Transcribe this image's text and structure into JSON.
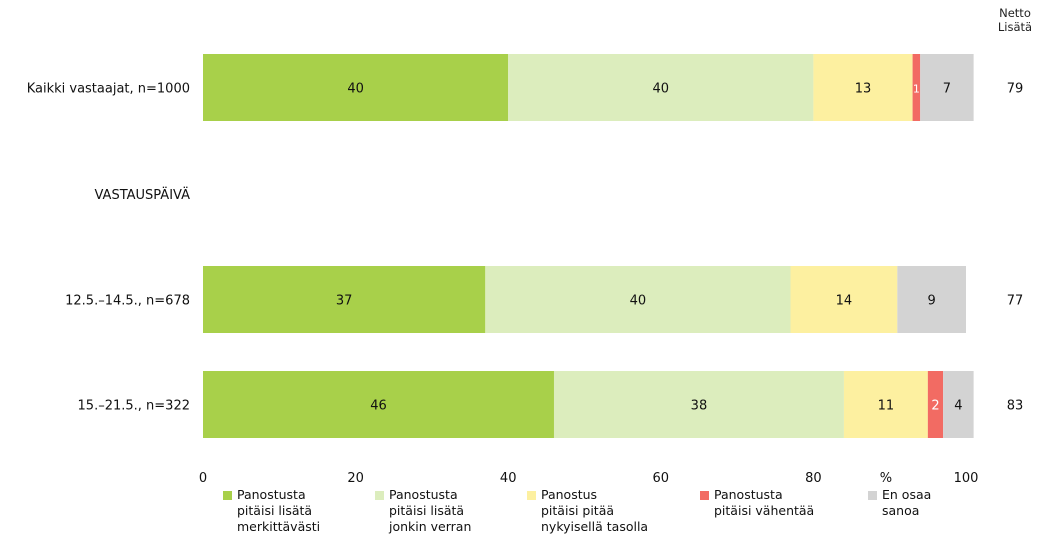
{
  "chart_data": {
    "type": "bar",
    "orientation": "horizontal",
    "stacked": true,
    "xlim": [
      0,
      100
    ],
    "x_ticks": [
      "0",
      "20",
      "40",
      "60",
      "80",
      "%",
      "100"
    ],
    "net_header": [
      "Netto",
      "Lisätä"
    ],
    "section_label": "VASTAUSPÄIVÄ",
    "series": [
      {
        "name": "Panostusta pitäisi lisätä merkittävästi",
        "color": "#a8d04a"
      },
      {
        "name": "Panostusta pitäisi lisätä jonkin verran",
        "color": "#dcedbd"
      },
      {
        "name": "Panostus pitäisi pitää nykyisellä tasolla",
        "color": "#fdf0a0"
      },
      {
        "name": "Panostusta pitäisi vähentää",
        "color": "#f26b63"
      },
      {
        "name": "En osaa sanoa",
        "color": "#d3d3d3"
      }
    ],
    "rows": [
      {
        "category": "Kaikki vastaajat, n=1000",
        "values": [
          40,
          40,
          13,
          1,
          7
        ],
        "labels": [
          "40",
          "40",
          "13",
          "1",
          "7"
        ],
        "net": "79"
      },
      {
        "category": "12.5.–14.5., n=678",
        "values": [
          37,
          40,
          14,
          0,
          9
        ],
        "labels": [
          "37",
          "40",
          "14",
          "",
          "9"
        ],
        "net": "77"
      },
      {
        "category": "15.–21.5., n=322",
        "values": [
          46,
          38,
          11,
          2,
          4
        ],
        "labels": [
          "46",
          "38",
          "11",
          "2",
          "4"
        ],
        "net": "83"
      }
    ]
  },
  "legend": [
    {
      "lines": [
        "Panostusta",
        "pitäisi lisätä",
        "merkittävästi"
      ]
    },
    {
      "lines": [
        "Panostusta",
        "pitäisi lisätä",
        "jonkin verran"
      ]
    },
    {
      "lines": [
        "Panostus",
        "pitäisi pitää",
        "nykyisellä tasolla"
      ]
    },
    {
      "lines": [
        "Panostusta",
        "pitäisi vähentää"
      ]
    },
    {
      "lines": [
        "En osaa",
        "sanoa"
      ]
    }
  ]
}
